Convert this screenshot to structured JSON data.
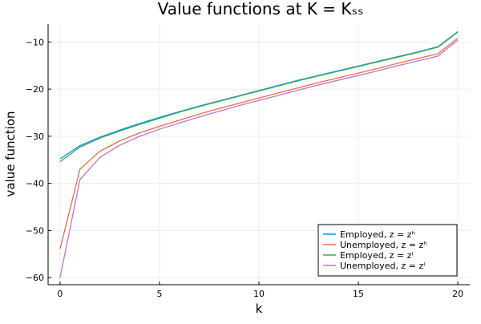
{
  "chart_data": {
    "type": "line",
    "title": "Value functions at K = Kₛₛ",
    "xlabel": "k",
    "ylabel": "value function",
    "xlim": [
      -0.6,
      20.6
    ],
    "ylim": [
      -61.5,
      -6.2
    ],
    "xticks": [
      0,
      5,
      10,
      15,
      20
    ],
    "yticks": [
      -60,
      -50,
      -40,
      -30,
      -20,
      -10
    ],
    "xtick_labels": [
      "0",
      "5",
      "10",
      "15",
      "20"
    ],
    "ytick_labels": [
      "−60",
      "−50",
      "−40",
      "−30",
      "−20",
      "−10"
    ],
    "grid": true,
    "legend_position": "bottom-right",
    "x": [
      0,
      1,
      2,
      3,
      4,
      5,
      6,
      7,
      8,
      9,
      10,
      11,
      12,
      13,
      14,
      15,
      16,
      17,
      18,
      19,
      20
    ],
    "series": [
      {
        "name": "Employed, z = zʰ",
        "color": "#009AFA",
        "values": [
          -34.8,
          -32.0,
          -30.2,
          -28.7,
          -27.3,
          -26.0,
          -24.8,
          -23.6,
          -22.5,
          -21.4,
          -20.3,
          -19.2,
          -18.1,
          -17.1,
          -16.1,
          -15.1,
          -14.1,
          -13.1,
          -12.1,
          -11.0,
          -7.8
        ]
      },
      {
        "name": "Unemployed, z = zʰ",
        "color": "#E36F47",
        "values": [
          -53.9,
          -37.0,
          -33.2,
          -31.0,
          -29.3,
          -27.9,
          -26.6,
          -25.3,
          -24.1,
          -23.0,
          -21.9,
          -20.8,
          -19.7,
          -18.6,
          -17.6,
          -16.6,
          -15.6,
          -14.5,
          -13.5,
          -12.5,
          -9.2
        ]
      },
      {
        "name": "Employed, z = zˡ",
        "color": "#3EA44E",
        "values": [
          -35.4,
          -32.3,
          -30.4,
          -28.9,
          -27.5,
          -26.2,
          -24.9,
          -23.7,
          -22.6,
          -21.5,
          -20.4,
          -19.3,
          -18.2,
          -17.2,
          -16.2,
          -15.2,
          -14.2,
          -13.2,
          -12.2,
          -11.1,
          -7.9
        ]
      },
      {
        "name": "Unemployed, z = zˡ",
        "color": "#C271D2",
        "values": [
          -60.0,
          -39.2,
          -34.5,
          -31.9,
          -30.0,
          -28.5,
          -27.2,
          -25.9,
          -24.7,
          -23.5,
          -22.4,
          -21.3,
          -20.2,
          -19.1,
          -18.1,
          -17.1,
          -16.1,
          -15.0,
          -14.0,
          -13.0,
          -9.6
        ]
      }
    ]
  }
}
